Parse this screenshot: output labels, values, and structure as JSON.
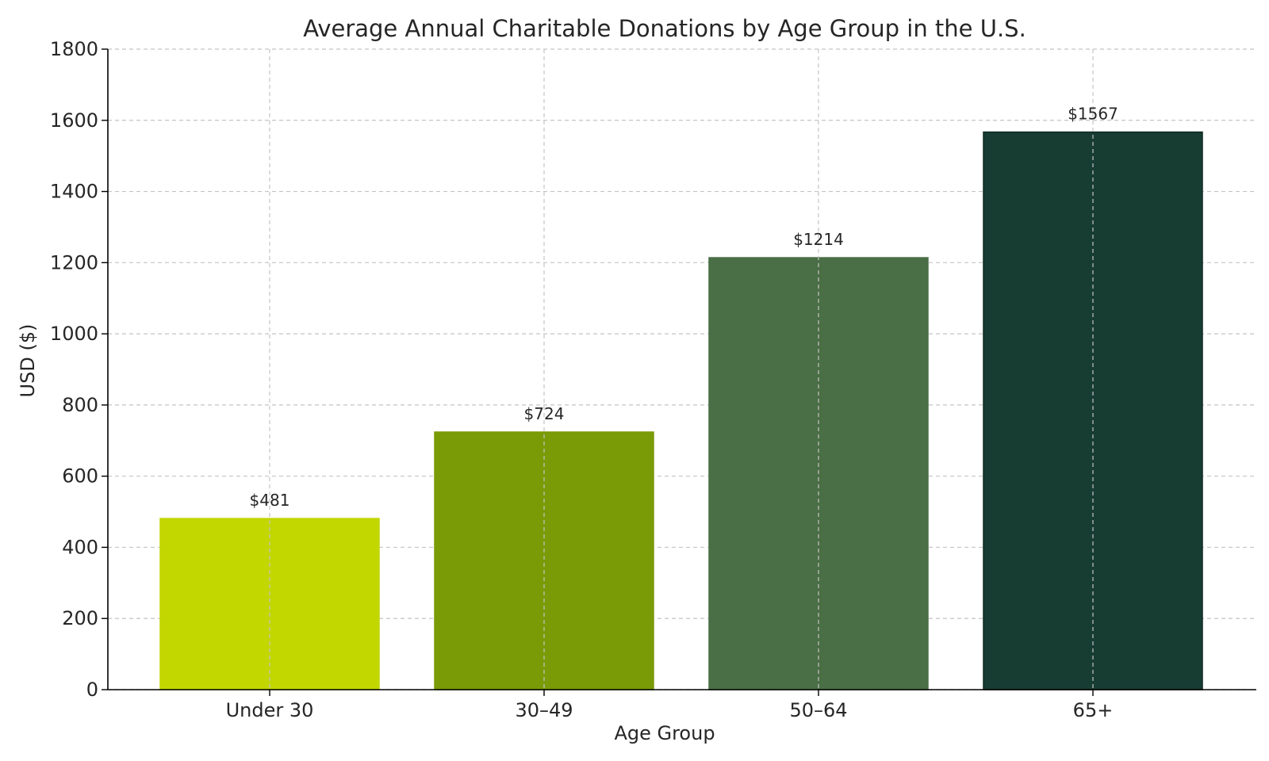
{
  "chart_data": {
    "type": "bar",
    "title": "Average Annual Charitable Donations by Age Group in the U.S.",
    "xlabel": "Age Group",
    "ylabel": "USD ($)",
    "categories": [
      "Under 30",
      "30–49",
      "50–64",
      "65+"
    ],
    "values": [
      481,
      724,
      1214,
      1567
    ],
    "data_labels": [
      "$481",
      "$724",
      "$1214",
      "$1567"
    ],
    "colors": [
      "#c2d600",
      "#7a9a06",
      "#4a6e45",
      "#173d33"
    ],
    "edge_colors": [
      "#c2d600",
      "#7a9a06",
      "#4a6e45",
      "#0e2a22"
    ],
    "ylim": [
      0,
      1800
    ],
    "yticks": [
      0,
      200,
      400,
      600,
      800,
      1000,
      1200,
      1400,
      1600,
      1800
    ],
    "ytick_labels": [
      "0",
      "200",
      "400",
      "600",
      "800",
      "1000",
      "1200",
      "1400",
      "1600",
      "1800"
    ],
    "grid": true,
    "grid_style": "dashed"
  }
}
